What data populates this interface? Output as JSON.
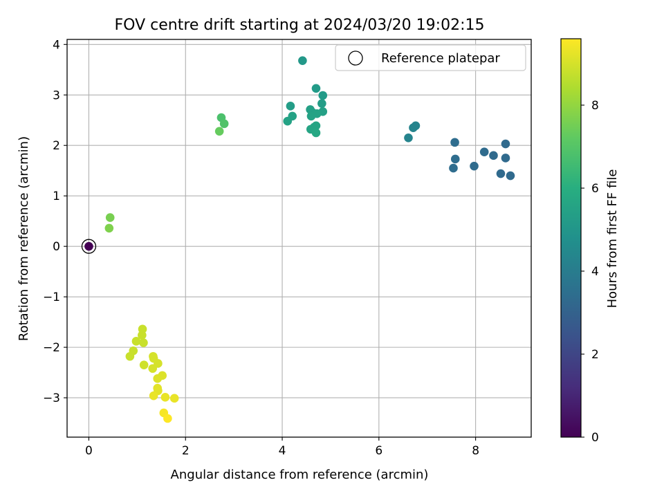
{
  "chart_data": {
    "type": "scatter",
    "title": "FOV centre drift starting at 2024/03/20 19:02:15",
    "xlabel": "Angular distance from reference (arcmin)",
    "ylabel": "Rotation from reference (arcmin)",
    "xlim": [
      -0.45,
      9.15
    ],
    "ylim": [
      -3.78,
      4.1
    ],
    "xticks": [
      0,
      2,
      4,
      6,
      8
    ],
    "yticks": [
      -3,
      -2,
      -1,
      0,
      1,
      2,
      3,
      4
    ],
    "grid": true,
    "legend": {
      "position": "top-right",
      "entries": [
        "Reference platepar"
      ]
    },
    "reference_point": {
      "x": 0,
      "y": 0
    },
    "colorbar": {
      "label": "Hours from first FF file",
      "range": [
        0,
        9.6
      ],
      "ticks": [
        0,
        2,
        4,
        6,
        8
      ],
      "colormap": "viridis"
    },
    "points": [
      {
        "x": 0.0,
        "y": 0.0,
        "c": 0.0
      },
      {
        "x": 8.72,
        "y": 1.4,
        "c": 3.3
      },
      {
        "x": 8.52,
        "y": 1.44,
        "c": 3.3
      },
      {
        "x": 8.62,
        "y": 1.75,
        "c": 3.3
      },
      {
        "x": 8.62,
        "y": 2.03,
        "c": 3.3
      },
      {
        "x": 8.37,
        "y": 1.8,
        "c": 3.3
      },
      {
        "x": 8.18,
        "y": 1.87,
        "c": 3.35
      },
      {
        "x": 7.97,
        "y": 1.59,
        "c": 3.35
      },
      {
        "x": 7.58,
        "y": 1.73,
        "c": 3.4
      },
      {
        "x": 7.54,
        "y": 1.55,
        "c": 3.4
      },
      {
        "x": 7.57,
        "y": 2.06,
        "c": 3.4
      },
      {
        "x": 6.76,
        "y": 2.39,
        "c": 4.3
      },
      {
        "x": 6.71,
        "y": 2.35,
        "c": 4.3
      },
      {
        "x": 6.61,
        "y": 2.15,
        "c": 4.3
      },
      {
        "x": 4.42,
        "y": 3.68,
        "c": 5.1
      },
      {
        "x": 4.7,
        "y": 3.13,
        "c": 5.2
      },
      {
        "x": 4.84,
        "y": 2.99,
        "c": 5.2
      },
      {
        "x": 4.82,
        "y": 2.83,
        "c": 5.3
      },
      {
        "x": 4.17,
        "y": 2.78,
        "c": 5.3
      },
      {
        "x": 4.58,
        "y": 2.71,
        "c": 5.4
      },
      {
        "x": 4.63,
        "y": 2.65,
        "c": 5.4
      },
      {
        "x": 4.84,
        "y": 2.67,
        "c": 5.4
      },
      {
        "x": 4.72,
        "y": 2.63,
        "c": 5.5
      },
      {
        "x": 4.6,
        "y": 2.58,
        "c": 5.5
      },
      {
        "x": 4.21,
        "y": 2.58,
        "c": 5.5
      },
      {
        "x": 4.11,
        "y": 2.48,
        "c": 5.5
      },
      {
        "x": 4.7,
        "y": 2.39,
        "c": 5.6
      },
      {
        "x": 4.66,
        "y": 2.36,
        "c": 5.6
      },
      {
        "x": 4.59,
        "y": 2.32,
        "c": 5.6
      },
      {
        "x": 4.7,
        "y": 2.25,
        "c": 5.7
      },
      {
        "x": 2.74,
        "y": 2.55,
        "c": 6.8
      },
      {
        "x": 2.8,
        "y": 2.43,
        "c": 6.9
      },
      {
        "x": 2.7,
        "y": 2.28,
        "c": 7.3
      },
      {
        "x": 0.44,
        "y": 0.57,
        "c": 7.6
      },
      {
        "x": 0.42,
        "y": 0.36,
        "c": 7.7
      },
      {
        "x": 1.11,
        "y": -1.64,
        "c": 8.8
      },
      {
        "x": 1.1,
        "y": -1.76,
        "c": 8.8
      },
      {
        "x": 0.98,
        "y": -1.88,
        "c": 8.8
      },
      {
        "x": 1.13,
        "y": -1.91,
        "c": 8.8
      },
      {
        "x": 0.92,
        "y": -2.07,
        "c": 8.8
      },
      {
        "x": 0.85,
        "y": -2.18,
        "c": 8.8
      },
      {
        "x": 1.14,
        "y": -2.35,
        "c": 8.9
      },
      {
        "x": 1.33,
        "y": -2.18,
        "c": 9.0
      },
      {
        "x": 1.34,
        "y": -2.22,
        "c": 9.0
      },
      {
        "x": 1.43,
        "y": -2.32,
        "c": 9.0
      },
      {
        "x": 1.32,
        "y": -2.42,
        "c": 9.0
      },
      {
        "x": 1.52,
        "y": -2.56,
        "c": 9.1
      },
      {
        "x": 1.42,
        "y": -2.62,
        "c": 9.1
      },
      {
        "x": 1.42,
        "y": -2.81,
        "c": 9.2
      },
      {
        "x": 1.43,
        "y": -2.86,
        "c": 9.2
      },
      {
        "x": 1.34,
        "y": -2.96,
        "c": 9.3
      },
      {
        "x": 1.58,
        "y": -2.99,
        "c": 9.3
      },
      {
        "x": 1.77,
        "y": -3.01,
        "c": 9.3
      },
      {
        "x": 1.55,
        "y": -3.3,
        "c": 9.5
      },
      {
        "x": 1.63,
        "y": -3.41,
        "c": 9.6
      }
    ]
  }
}
